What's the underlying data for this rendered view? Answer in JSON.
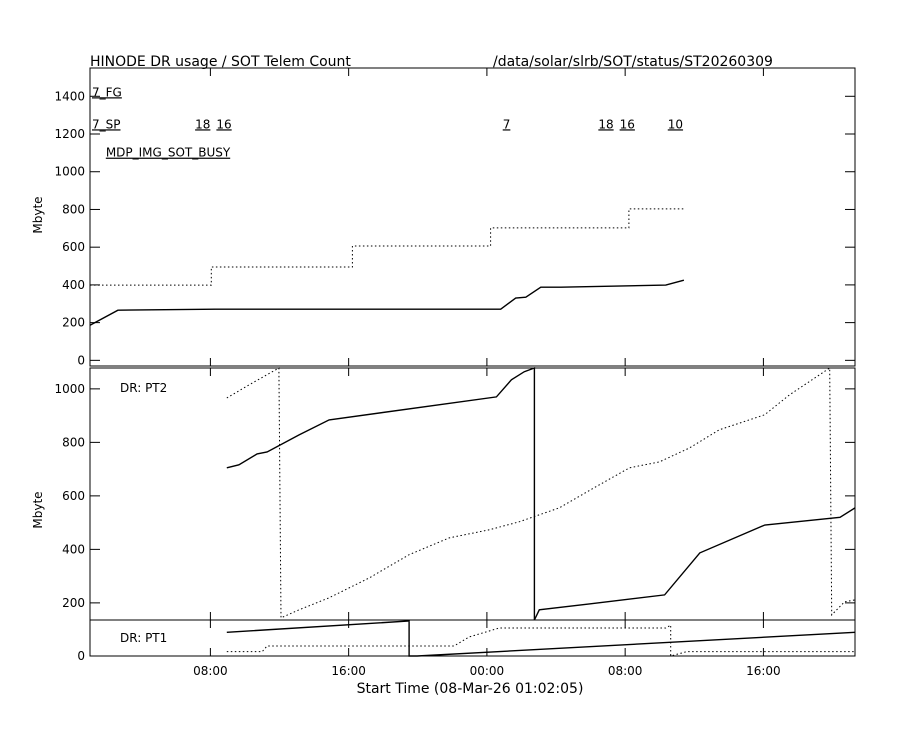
{
  "title": "HINODE DR usage / SOT Telem Count",
  "path": "/data/solar/slrb/SOT/status/ST20260309",
  "xlabel": "Start Time (08-Mar-26 01:02:05)",
  "chart_data": [
    {
      "type": "line",
      "panel": "top",
      "ylabel": "Mbyte",
      "ylim": [
        -30,
        1550
      ],
      "yticks": [
        0,
        200,
        400,
        600,
        800,
        1000,
        1200,
        1400
      ],
      "annotations": [
        {
          "text": "7_FG",
          "x": "03-08 01:02",
          "y": 1400
        },
        {
          "text": "7_SP",
          "x": "03-08 01:02",
          "y": 1230
        },
        {
          "text": "18",
          "x": "03-08 07:00",
          "y": 1230
        },
        {
          "text": "16",
          "x": "03-08 07:10",
          "y": 1230
        },
        {
          "text": "7",
          "x": "03-09 00:48",
          "y": 1230
        },
        {
          "text": "18",
          "x": "03-09 06:20",
          "y": 1230
        },
        {
          "text": "16",
          "x": "03-09 06:30",
          "y": 1230
        },
        {
          "text": "10",
          "x": "03-09 10:21",
          "y": 1230
        },
        {
          "text": "MDP_IMG_SOT_BUSY",
          "x": "03-08 01:50",
          "y": 1080
        }
      ],
      "series": [
        {
          "style": "solid",
          "x": [
            "03-08 01:02",
            "03-08 02:39",
            "03-08 08:17",
            "03-09 00:48",
            "03-09 01:40",
            "03-09 02:15",
            "03-09 03:07",
            "03-09 04:17",
            "03-09 10:21",
            "03-09 11:24"
          ],
          "y": [
            186,
            266,
            271,
            271,
            330,
            335,
            388,
            388,
            399,
            425
          ]
        },
        {
          "style": "dotted",
          "x": [
            "03-08 01:02",
            "03-08 08:03",
            "03-08 08:03",
            "03-08 16:13",
            "03-08 16:13",
            "03-09 00:13",
            "03-09 00:13",
            "03-09 08:13",
            "03-09 08:13",
            "03-09 11:24"
          ],
          "y": [
            399,
            399,
            495,
            495,
            606,
            606,
            702,
            702,
            803,
            803
          ]
        }
      ]
    },
    {
      "type": "line",
      "panel": "middle",
      "label": "DR: PT2",
      "ylabel": "Mbyte",
      "ylim": [
        136,
        1078
      ],
      "yticks": [
        200,
        400,
        600,
        800,
        1000
      ],
      "series": [
        {
          "style": "solid",
          "x": [
            "03-08 08:57",
            "03-08 09:39",
            "03-08 10:42",
            "03-08 11:17",
            "03-08 13:08",
            "03-08 14:52",
            "03-09 00:33",
            "03-09 01:25",
            "03-09 02:10",
            "03-09 02:45",
            "03-09 02:45",
            "03-09 03:02",
            "03-09 05:56",
            "03-09 10:17",
            "03-09 12:19",
            "03-09 16:05",
            "03-09 20:26",
            "03-09 21:18"
          ],
          "y": [
            705,
            716,
            757,
            764,
            828,
            884,
            970,
            1034,
            1064,
            1078,
            136,
            174,
            196,
            230,
            387,
            491,
            520,
            555
          ]
        },
        {
          "style": "dotted",
          "x": [
            "03-08 08:57",
            "03-08 10:14",
            "03-08 11:58",
            "03-08 12:05",
            "03-08 13:08",
            "03-08 14:52",
            "03-08 17:11",
            "03-08 19:30",
            "03-08 21:49",
            "03-09 00:08",
            "03-09 01:52",
            "03-09 04:11",
            "03-09 06:30",
            "03-09 08:15",
            "03-09 09:59",
            "03-09 11:43",
            "03-09 13:27",
            "03-09 16:04",
            "03-09 17:31",
            "03-09 19:50",
            "03-09 19:57",
            "03-09 20:42",
            "03-09 21:18"
          ],
          "y": [
            966,
            1015,
            1078,
            144,
            174,
            219,
            293,
            380,
            443,
            473,
            503,
            555,
            641,
            705,
            727,
            779,
            847,
            903,
            978,
            1078,
            155,
            204,
            211
          ]
        }
      ]
    },
    {
      "type": "line",
      "panel": "bottom",
      "label": "DR: PT1",
      "ylim": [
        0,
        140
      ],
      "yticks": [
        0
      ],
      "series": [
        {
          "style": "solid",
          "x": [
            "03-08 08:57",
            "03-08 19:30",
            "03-08 19:30",
            "03-08 19:30",
            "03-08 19:58",
            "03-09 21:18"
          ],
          "y": [
            92,
            136,
            140,
            0,
            0,
            92
          ]
        },
        {
          "style": "dotted",
          "x": [
            "03-08 08:57",
            "03-08 11:00",
            "03-08 11:17",
            "03-08 22:06",
            "03-08 22:58",
            "03-09 00:43",
            "03-09 10:21",
            "03-09 10:38",
            "03-09 10:38",
            "03-09 11:34",
            "03-09 21:18"
          ],
          "y": [
            17,
            17,
            39,
            39,
            74,
            109,
            109,
            120,
            0,
            17,
            17
          ]
        }
      ]
    }
  ],
  "xticks": [
    "08:00",
    "16:00",
    "00:00",
    "08:00",
    "16:00"
  ],
  "xtick_times": [
    "03-08 08:00",
    "03-08 16:00",
    "03-09 00:00",
    "03-09 08:00",
    "03-09 16:00"
  ],
  "xlim": [
    "03-08 01:02",
    "03-09 21:18"
  ]
}
